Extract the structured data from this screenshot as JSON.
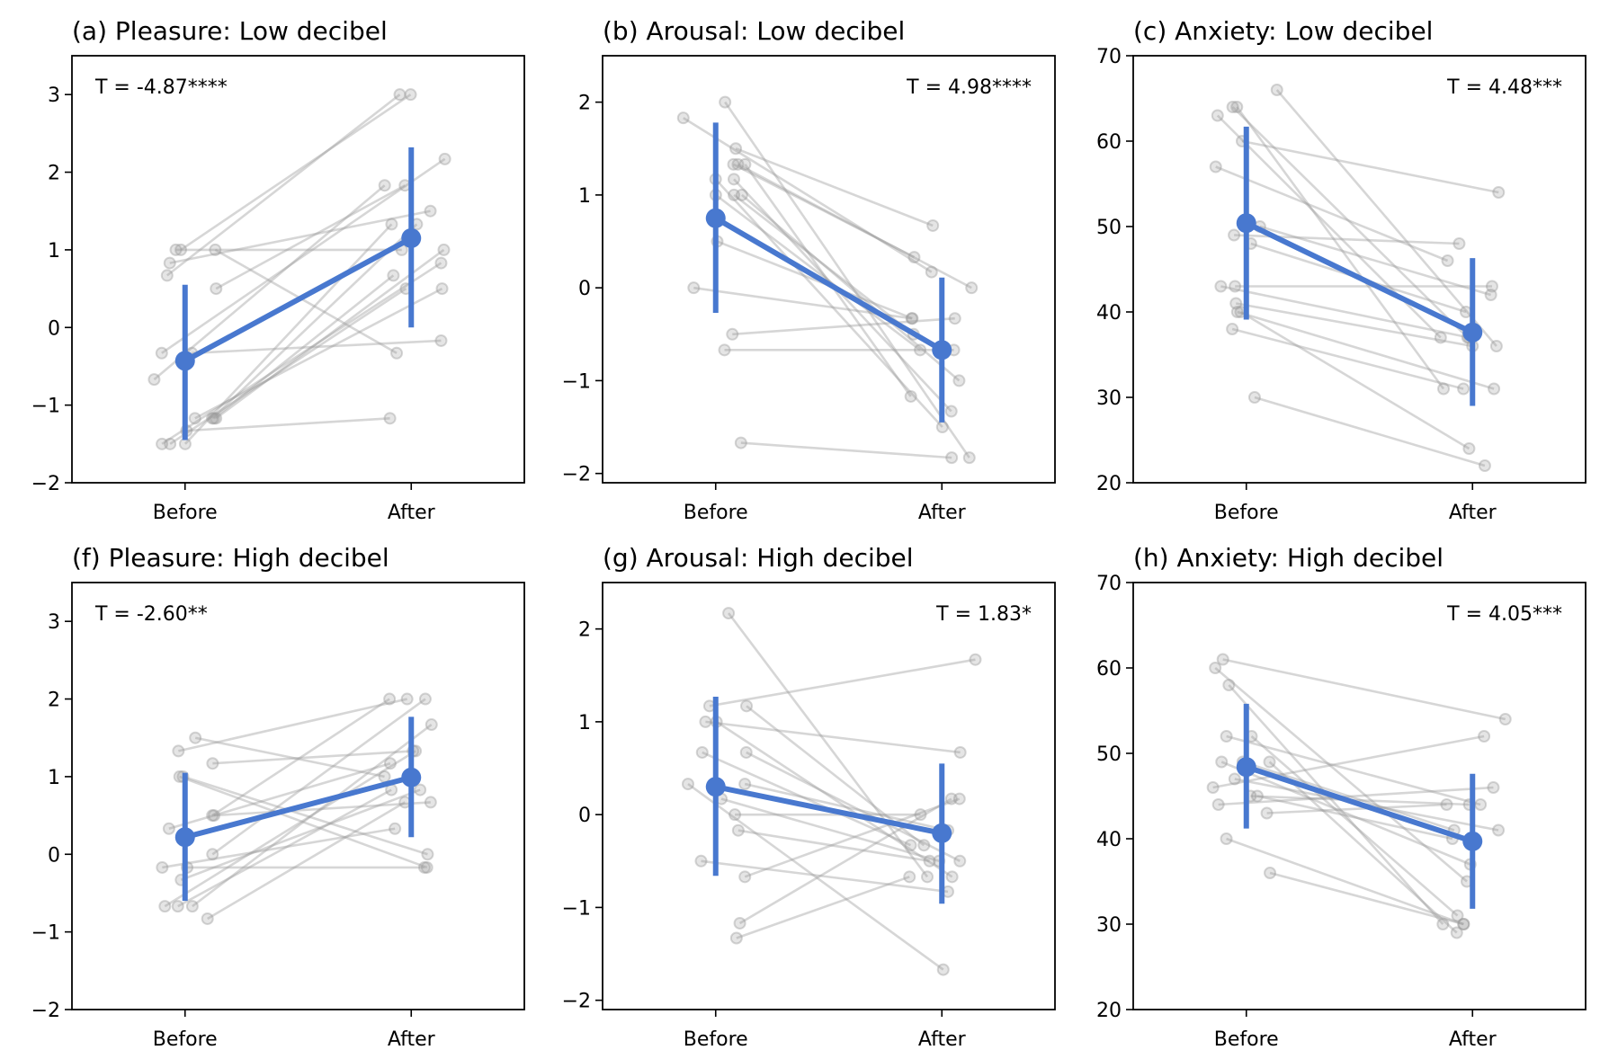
{
  "chart_data": [
    {
      "type": "line",
      "title": "(a) Pleasure: Low decibel",
      "annotation": "T = -4.87****",
      "annotation_position": "top-left",
      "categories": [
        "Before",
        "After"
      ],
      "ylim": [
        -2,
        3.5
      ],
      "yticks": [
        -2,
        -1,
        0,
        1,
        2,
        3
      ],
      "ytick_labels": [
        "−2",
        "−1",
        "0",
        "1",
        "2",
        "3"
      ],
      "mean": [
        -0.43,
        1.15
      ],
      "ci": [
        [
          -1.45,
          0.55
        ],
        [
          0.0,
          2.32
        ]
      ],
      "pairs": [
        [
          1,
          3
        ],
        [
          0.67,
          3
        ],
        [
          1,
          1
        ],
        [
          1,
          -0.33
        ],
        [
          0.5,
          1.83
        ],
        [
          0.83,
          1.5
        ],
        [
          -0.33,
          -0.17
        ],
        [
          -0.33,
          2.17
        ],
        [
          -0.67,
          1.83
        ],
        [
          -1.17,
          1.33
        ],
        [
          -1.17,
          0.67
        ],
        [
          -1.17,
          1
        ],
        [
          -1.33,
          -1.17
        ],
        [
          -1.5,
          1.33
        ],
        [
          -1.5,
          0.83
        ],
        [
          -1.5,
          0.5
        ],
        [
          -1.17,
          0.5
        ]
      ]
    },
    {
      "type": "line",
      "title": "(b) Arousal: Low decibel",
      "annotation": "T = 4.98****",
      "annotation_position": "top-right",
      "categories": [
        "Before",
        "After"
      ],
      "ylim": [
        -2.1,
        2.5
      ],
      "yticks": [
        -2,
        -1,
        0,
        1,
        2
      ],
      "ytick_labels": [
        "−2",
        "−1",
        "0",
        "1",
        "2"
      ],
      "mean": [
        0.75,
        -0.67
      ],
      "ci": [
        [
          -0.27,
          1.78
        ],
        [
          -1.45,
          0.11
        ]
      ],
      "pairs": [
        [
          2,
          -1.83
        ],
        [
          1.83,
          0.17
        ],
        [
          1.5,
          0.67
        ],
        [
          1.33,
          0.33
        ],
        [
          1.33,
          -1.17
        ],
        [
          1.33,
          0
        ],
        [
          1.17,
          -1.5
        ],
        [
          1.17,
          -1.33
        ],
        [
          1,
          -0.67
        ],
        [
          1,
          -1
        ],
        [
          1,
          -0.5
        ],
        [
          0.5,
          -0.33
        ],
        [
          0,
          -0.33
        ],
        [
          -0.5,
          -0.33
        ],
        [
          -0.67,
          -0.67
        ],
        [
          -1.67,
          -1.83
        ]
      ]
    },
    {
      "type": "line",
      "title": "(c) Anxiety: Low decibel",
      "annotation": "T = 4.48***",
      "annotation_position": "top-right",
      "categories": [
        "Before",
        "After"
      ],
      "ylim": [
        20,
        70
      ],
      "yticks": [
        20,
        30,
        40,
        50,
        60,
        70
      ],
      "ytick_labels": [
        "20",
        "30",
        "40",
        "50",
        "60",
        "70"
      ],
      "mean": [
        50.4,
        37.6
      ],
      "ci": [
        [
          39.1,
          61.7
        ],
        [
          29.0,
          46.3
        ]
      ],
      "pairs": [
        [
          66,
          36
        ],
        [
          64,
          37
        ],
        [
          64,
          31
        ],
        [
          63,
          37
        ],
        [
          60,
          54
        ],
        [
          57,
          46
        ],
        [
          50,
          42
        ],
        [
          49,
          48
        ],
        [
          48,
          40
        ],
        [
          43,
          43
        ],
        [
          43,
          37
        ],
        [
          41,
          36
        ],
        [
          40,
          31
        ],
        [
          40,
          24
        ],
        [
          38,
          31
        ],
        [
          30,
          22
        ]
      ]
    },
    {
      "type": "line",
      "title": "(f) Pleasure: High decibel",
      "annotation": "T = -2.60**",
      "annotation_position": "top-left",
      "categories": [
        "Before",
        "After"
      ],
      "ylim": [
        -2,
        3.5
      ],
      "yticks": [
        -2,
        -1,
        0,
        1,
        2,
        3
      ],
      "ytick_labels": [
        "−2",
        "−1",
        "0",
        "1",
        "2",
        "3"
      ],
      "mean": [
        0.22,
        0.99
      ],
      "ci": [
        [
          -0.6,
          1.05
        ],
        [
          0.22,
          1.77
        ]
      ],
      "pairs": [
        [
          1.5,
          1
        ],
        [
          1.33,
          2
        ],
        [
          1.17,
          1.33
        ],
        [
          1,
          0
        ],
        [
          1,
          -0.17
        ],
        [
          0.5,
          2
        ],
        [
          0.5,
          0.67
        ],
        [
          0.33,
          1.17
        ],
        [
          0,
          2
        ],
        [
          -0.17,
          -0.17
        ],
        [
          -0.17,
          0.33
        ],
        [
          -0.33,
          0.83
        ],
        [
          -0.67,
          0.83
        ],
        [
          -0.67,
          1.67
        ],
        [
          -0.67,
          1.33
        ],
        [
          -0.83,
          0.67
        ]
      ]
    },
    {
      "type": "line",
      "title": "(g) Arousal: High decibel",
      "annotation": "T = 1.83*",
      "annotation_position": "top-right",
      "categories": [
        "Before",
        "After"
      ],
      "ylim": [
        -2.1,
        2.5
      ],
      "yticks": [
        -2,
        -1,
        0,
        1,
        2
      ],
      "ytick_labels": [
        "−2",
        "−1",
        "0",
        "1",
        "2"
      ],
      "mean": [
        0.3,
        -0.2
      ],
      "ci": [
        [
          -0.66,
          1.27
        ],
        [
          -0.96,
          0.55
        ]
      ],
      "pairs": [
        [
          2.17,
          -0.67
        ],
        [
          1.17,
          1.67
        ],
        [
          1.17,
          -0.33
        ],
        [
          1,
          0.67
        ],
        [
          1,
          -0.67
        ],
        [
          0.67,
          -0.5
        ],
        [
          0.67,
          -0.33
        ],
        [
          0.33,
          -1.67
        ],
        [
          0.17,
          -0.5
        ],
        [
          0,
          0
        ],
        [
          -0.17,
          -0.5
        ],
        [
          -0.5,
          -0.83
        ],
        [
          -0.67,
          0.17
        ],
        [
          -1.17,
          0.17
        ],
        [
          -1.33,
          -0.67
        ],
        [
          0.33,
          -0.17
        ]
      ]
    },
    {
      "type": "line",
      "title": "(h) Anxiety: High decibel",
      "annotation": "T = 4.05***",
      "annotation_position": "top-right",
      "categories": [
        "Before",
        "After"
      ],
      "ylim": [
        20,
        70
      ],
      "yticks": [
        20,
        30,
        40,
        50,
        60,
        70
      ],
      "ytick_labels": [
        "20",
        "30",
        "40",
        "50",
        "60",
        "70"
      ],
      "mean": [
        48.4,
        39.7
      ],
      "ci": [
        [
          41.2,
          55.8
        ],
        [
          31.8,
          47.6
        ]
      ],
      "pairs": [
        [
          61,
          54
        ],
        [
          60,
          35
        ],
        [
          58,
          30
        ],
        [
          52,
          44
        ],
        [
          52,
          31
        ],
        [
          49,
          41
        ],
        [
          49,
          37
        ],
        [
          49,
          29
        ],
        [
          47,
          41
        ],
        [
          46,
          52
        ],
        [
          45,
          40
        ],
        [
          45,
          44
        ],
        [
          44,
          46
        ],
        [
          43,
          44
        ],
        [
          40,
          30
        ],
        [
          36,
          30
        ]
      ]
    }
  ],
  "colors": {
    "mean": "#4878cf",
    "individual": "#999999"
  }
}
